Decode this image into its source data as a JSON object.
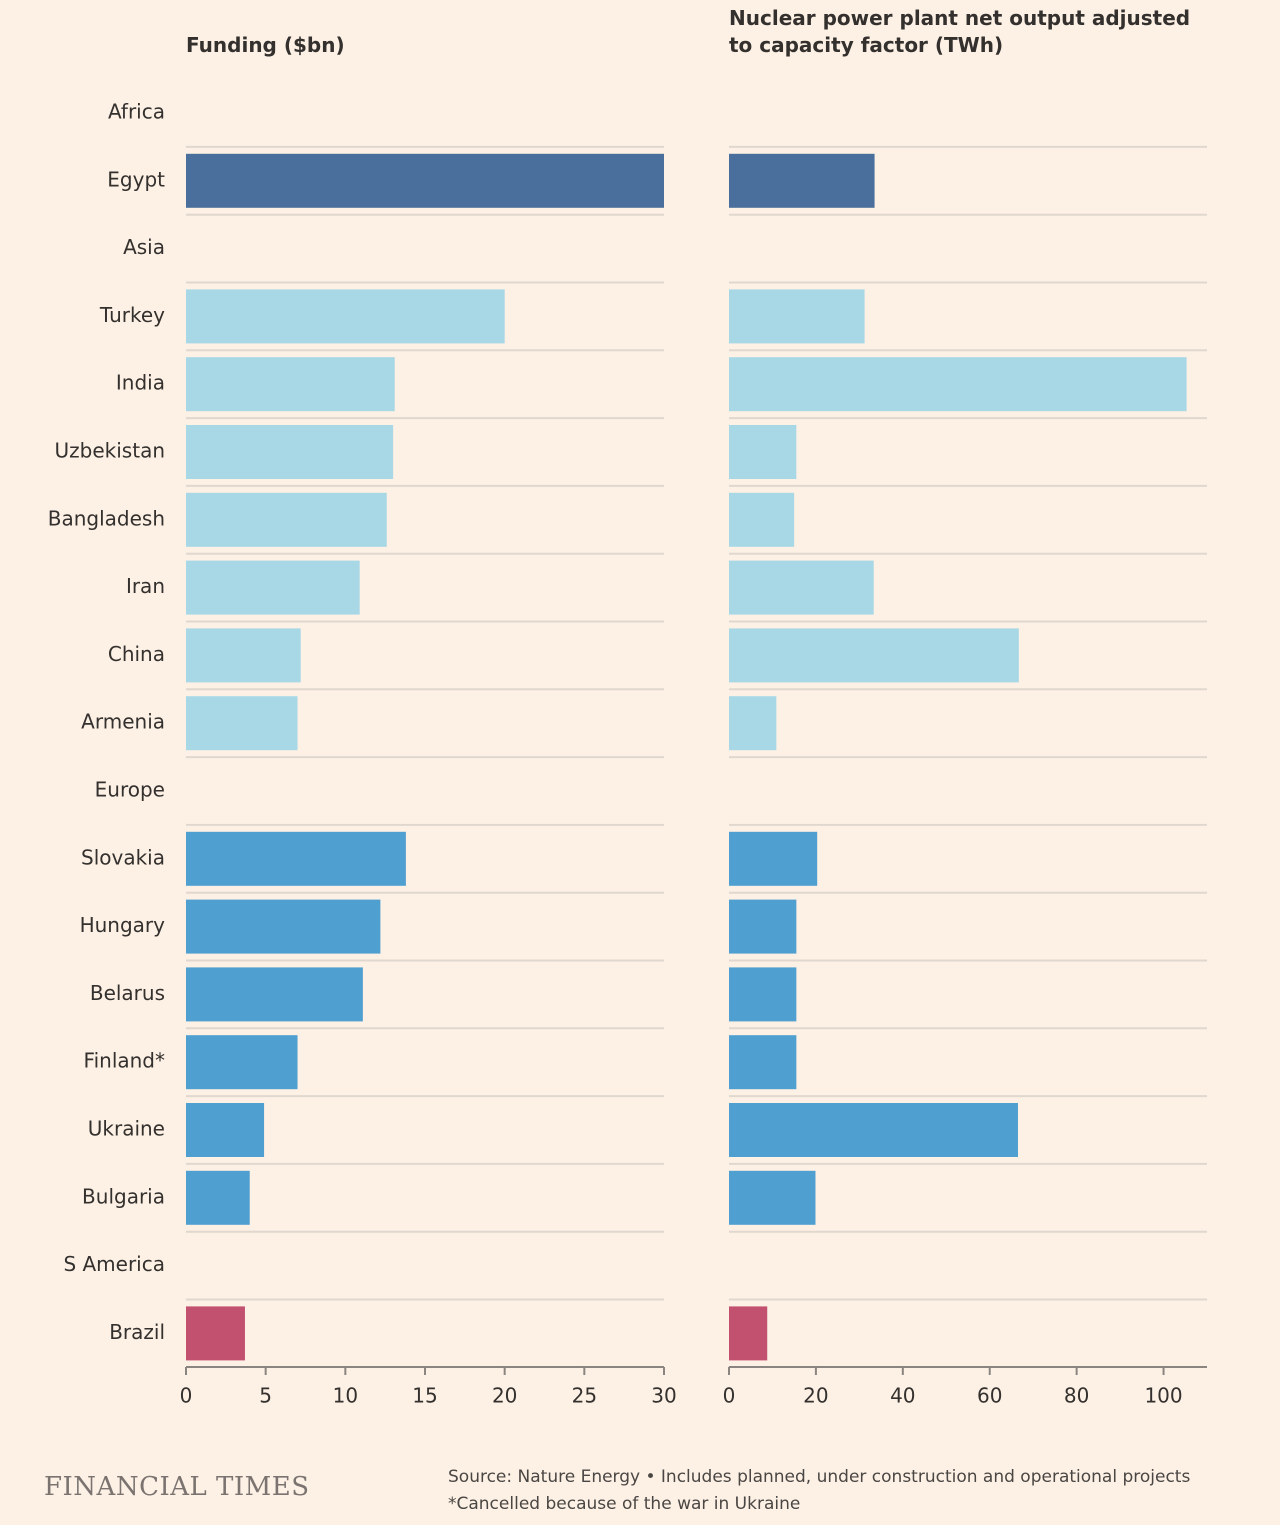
{
  "chart_data": [
    {
      "type": "bar",
      "orientation": "horizontal",
      "title": "Funding ($bn)",
      "categories": [
        "Africa",
        "Egypt",
        "Asia",
        "Turkey",
        "India",
        "Uzbekistan",
        "Bangladesh",
        "Iran",
        "China",
        "Armenia",
        "Europe",
        "Slovakia",
        "Hungary",
        "Belarus",
        "Finland*",
        "Ukraine",
        "Bulgaria",
        "S America",
        "Brazil"
      ],
      "values": [
        null,
        30,
        null,
        20,
        13.1,
        13,
        12.6,
        10.9,
        7.2,
        7.0,
        null,
        13.8,
        12.2,
        11.1,
        7.0,
        4.9,
        4.0,
        null,
        3.7
      ],
      "colors": [
        null,
        "#4a6f9c",
        null,
        "#a8d8e6",
        "#a8d8e6",
        "#a8d8e6",
        "#a8d8e6",
        "#a8d8e6",
        "#a8d8e6",
        "#a8d8e6",
        null,
        "#4f9fd0",
        "#4f9fd0",
        "#4f9fd0",
        "#4f9fd0",
        "#4f9fd0",
        "#4f9fd0",
        null,
        "#c2506f"
      ],
      "xlim": [
        0,
        30
      ],
      "xticks": [
        0,
        5,
        10,
        15,
        20,
        25,
        30
      ]
    },
    {
      "type": "bar",
      "orientation": "horizontal",
      "title": "Nuclear power plant net output adjusted to capacity factor (TWh)",
      "values": [
        null,
        33.5,
        null,
        31.2,
        105.3,
        15.5,
        15,
        33.3,
        66.7,
        10.9,
        null,
        20.3,
        15.5,
        15.5,
        15.5,
        66.5,
        19.9,
        null,
        8.8
      ],
      "colors": [
        null,
        "#4a6f9c",
        null,
        "#a8d8e6",
        "#a8d8e6",
        "#a8d8e6",
        "#a8d8e6",
        "#a8d8e6",
        "#a8d8e6",
        "#a8d8e6",
        null,
        "#4f9fd0",
        "#4f9fd0",
        "#4f9fd0",
        "#4f9fd0",
        "#4f9fd0",
        "#4f9fd0",
        null,
        "#c2506f"
      ],
      "xlim": [
        0,
        110
      ],
      "xticks": [
        0,
        20,
        40,
        60,
        80,
        100
      ]
    }
  ],
  "footer": {
    "brand": "FINANCIAL TIMES",
    "source": "Source: Nature Energy • Includes planned, under construction and operational projects",
    "note": "*Cancelled because of the war in Ukraine"
  }
}
